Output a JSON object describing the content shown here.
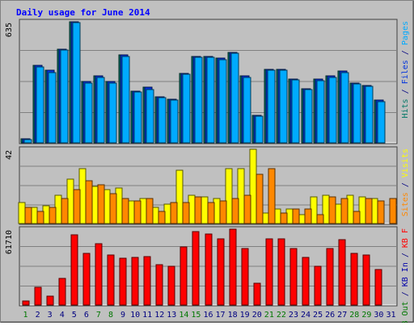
{
  "colors": {
    "background": "#c0c0c0",
    "title": "#0000ff",
    "pages": "#00aaff",
    "files": "#0033dd",
    "hits": "#007766",
    "visits": "#ffff00",
    "sites": "#ff8800",
    "kb_out": "#0000aa",
    "kb_in": "#007700",
    "kb_f": "#ff0000",
    "weekend_day": "#007700",
    "weekday_day": "#000080"
  },
  "chart_data": {
    "type": "bar",
    "title": "Daily usage for June 2014",
    "categories": [
      "1",
      "2",
      "3",
      "4",
      "5",
      "6",
      "7",
      "8",
      "9",
      "10",
      "11",
      "12",
      "13",
      "14",
      "15",
      "16",
      "17",
      "18",
      "19",
      "20",
      "21",
      "22",
      "23",
      "24",
      "25",
      "26",
      "27",
      "28",
      "29",
      "30",
      "31"
    ],
    "weekend_days": [
      1,
      7,
      8,
      14,
      15,
      21,
      22,
      28,
      29
    ],
    "panels": [
      {
        "id": "top",
        "max_label": "635",
        "ymax": 635,
        "legend": [
          {
            "text": "Pages",
            "color": "#00aaff"
          },
          {
            "text": " / ",
            "color": "#000080"
          },
          {
            "text": "Files",
            "color": "#0033dd"
          },
          {
            "text": " / ",
            "color": "#000080"
          },
          {
            "text": "Hits",
            "color": "#007766"
          }
        ],
        "series": [
          {
            "name": "Hits",
            "color": "#007766",
            "values": [
              20,
              406,
              380,
              492,
              635,
              320,
              350,
              320,
              460,
              270,
              290,
              240,
              230,
              365,
              455,
              455,
              445,
              475,
              350,
              145,
              385,
              385,
              335,
              285,
              335,
              350,
              375,
              315,
              300,
              225,
              null
            ]
          },
          {
            "name": "Files",
            "color": "#0033dd",
            "values": [
              20,
              406,
              380,
              492,
              635,
              320,
              350,
              320,
              460,
              270,
              290,
              240,
              230,
              365,
              455,
              455,
              445,
              475,
              350,
              145,
              385,
              385,
              335,
              285,
              335,
              350,
              375,
              315,
              300,
              225,
              null
            ]
          },
          {
            "name": "Pages",
            "color": "#00aaff",
            "values": [
              15,
              400,
              370,
              485,
              630,
              312,
              345,
              315,
              455,
              265,
              280,
              235,
              225,
              360,
              448,
              448,
              438,
              468,
              345,
              138,
              380,
              380,
              330,
              278,
              328,
              343,
              370,
              308,
              295,
              218,
              null
            ]
          }
        ]
      },
      {
        "id": "mid",
        "max_label": "42",
        "ymax": 42,
        "legend": [
          {
            "text": "Visits",
            "color": "#ffff00"
          },
          {
            "text": " / ",
            "color": "#000080"
          },
          {
            "text": "Sites",
            "color": "#ff8800"
          }
        ],
        "series": [
          {
            "name": "Visits",
            "color": "#ffff00",
            "values": [
              12,
              9,
              10,
              16,
              25,
              31,
              21,
              19,
              20,
              13,
              14,
              9,
              11,
              30,
              16,
              15,
              14,
              31,
              31,
              42,
              6,
              8,
              8,
              5,
              15,
              16,
              11,
              16,
              15,
              14,
              null
            ]
          },
          {
            "name": "Sites",
            "color": "#ff8800",
            "values": [
              9,
              7,
              9,
              14,
              19,
              24,
              22,
              17,
              14,
              13,
              14,
              7,
              12,
              12,
              15,
              12,
              13,
              14,
              16,
              28,
              31,
              6,
              8,
              8,
              5,
              15,
              14,
              7,
              14,
              13,
              14
            ]
          }
        ]
      },
      {
        "id": "bot",
        "max_label": "61710",
        "ymax": 61710,
        "legend": [
          {
            "text": "KB F",
            "color": "#ff0000"
          },
          {
            "text": " / ",
            "color": "#000080"
          },
          {
            "text": "KB In",
            "color": "#0000aa"
          },
          {
            "text": " / ",
            "color": "#000080"
          },
          {
            "text": "KB Out",
            "color": "#007700"
          }
        ],
        "series": [
          {
            "name": "KB F",
            "color": "#ff0000",
            "values": [
              3500,
              14200,
              7500,
              21500,
              57000,
              42000,
              50200,
              40800,
              38200,
              38800,
              39100,
              32600,
              31200,
              47000,
              59800,
              58000,
              53700,
              61710,
              46000,
              17500,
              53800,
              53600,
              46000,
              38600,
              31800,
              45700,
              53300,
              42200,
              40400,
              29000,
              null
            ]
          }
        ]
      }
    ]
  }
}
